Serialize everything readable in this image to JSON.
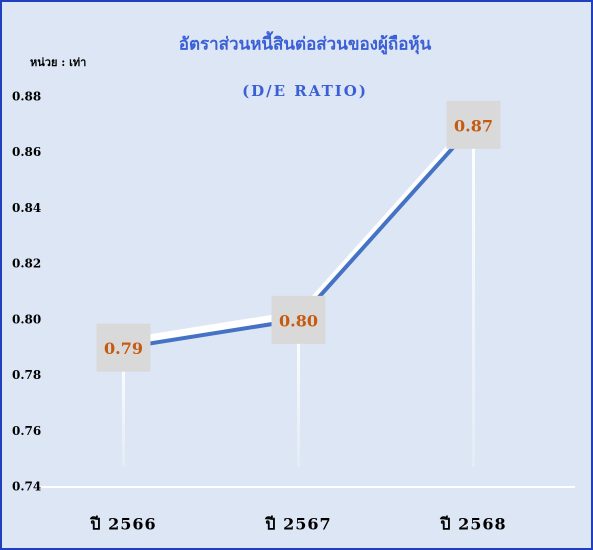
{
  "chart_data": {
    "type": "line",
    "title": "อัตราส่วนหนี้สินต่อส่วนของผู้ถือหุ้น",
    "subtitle": "(D/E RATIO)",
    "unit_label": "หน่วย : เท่า",
    "categories": [
      "ปี 2566",
      "ปี 2567",
      "ปี 2568"
    ],
    "values": [
      0.79,
      0.8,
      0.87
    ],
    "value_labels": [
      "0.79",
      "0.80",
      "0.87"
    ],
    "color": "#4472c4",
    "ylim": [
      0.74,
      0.88
    ],
    "yticks": [
      0.74,
      0.76,
      0.78,
      {
        "value": 0.8,
        "label": "0.80"
      },
      0.82,
      0.84,
      0.86,
      0.88
    ],
    "grid": false
  }
}
